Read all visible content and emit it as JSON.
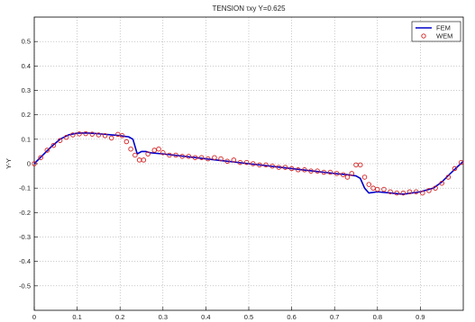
{
  "chart_data": {
    "type": "line",
    "title": "TENSION τxy Y=0.625",
    "ylabel": "Y-Y",
    "xlabel": "",
    "xlim": [
      0,
      1
    ],
    "ylim": [
      -0.6,
      0.6
    ],
    "grid": true,
    "legend_position": "top-right",
    "x_ticks": [
      "0",
      "0.1",
      "0.2",
      "0.3",
      "0.4",
      "0.5",
      "0.6",
      "0.7",
      "0.8",
      "0.9"
    ],
    "y_ticks": [
      "0.5",
      "0.4",
      "0.3",
      "0.2",
      "0.1",
      "0",
      "-0.1",
      "-0.2",
      "-0.3",
      "-0.4",
      "-0.5"
    ],
    "series": [
      {
        "name": "FEM",
        "style": "line",
        "color": "#0000cc",
        "x": [
          0,
          0.02,
          0.04,
          0.06,
          0.08,
          0.1,
          0.12,
          0.14,
          0.16,
          0.18,
          0.2,
          0.21,
          0.22,
          0.23,
          0.24,
          0.25,
          0.26,
          0.27,
          0.3,
          0.35,
          0.4,
          0.45,
          0.5,
          0.55,
          0.6,
          0.65,
          0.7,
          0.73,
          0.75,
          0.76,
          0.77,
          0.78,
          0.8,
          0.83,
          0.86,
          0.9,
          0.93,
          0.95,
          0.97,
          1.0
        ],
        "y": [
          0.0,
          0.035,
          0.07,
          0.1,
          0.118,
          0.125,
          0.126,
          0.124,
          0.121,
          0.118,
          0.115,
          0.112,
          0.11,
          0.1,
          0.04,
          0.05,
          0.05,
          0.045,
          0.04,
          0.03,
          0.02,
          0.01,
          0.0,
          -0.01,
          -0.02,
          -0.03,
          -0.04,
          -0.045,
          -0.05,
          -0.06,
          -0.1,
          -0.12,
          -0.115,
          -0.12,
          -0.125,
          -0.115,
          -0.1,
          -0.075,
          -0.04,
          0.01
        ]
      },
      {
        "name": "WEM",
        "style": "markers",
        "color": "#d42020",
        "x": [
          0.0,
          0.015,
          0.03,
          0.045,
          0.06,
          0.075,
          0.09,
          0.105,
          0.12,
          0.135,
          0.15,
          0.165,
          0.18,
          0.195,
          0.205,
          0.215,
          0.225,
          0.235,
          0.245,
          0.255,
          0.265,
          0.28,
          0.29,
          0.3,
          0.315,
          0.33,
          0.345,
          0.36,
          0.375,
          0.39,
          0.405,
          0.42,
          0.435,
          0.45,
          0.465,
          0.48,
          0.495,
          0.51,
          0.525,
          0.54,
          0.555,
          0.57,
          0.585,
          0.6,
          0.615,
          0.63,
          0.645,
          0.66,
          0.675,
          0.69,
          0.705,
          0.72,
          0.73,
          0.74,
          0.75,
          0.76,
          0.77,
          0.78,
          0.79,
          0.8,
          0.815,
          0.83,
          0.845,
          0.86,
          0.875,
          0.89,
          0.905,
          0.92,
          0.935,
          0.95,
          0.965,
          0.98,
          0.995
        ],
        "y": [
          0.0,
          0.025,
          0.055,
          0.075,
          0.095,
          0.108,
          0.118,
          0.122,
          0.123,
          0.121,
          0.118,
          0.115,
          0.105,
          0.12,
          0.115,
          0.09,
          0.06,
          0.035,
          0.015,
          0.015,
          0.04,
          0.055,
          0.06,
          0.045,
          0.035,
          0.035,
          0.03,
          0.03,
          0.025,
          0.025,
          0.02,
          0.025,
          0.02,
          0.01,
          0.015,
          0.005,
          0.005,
          0.0,
          -0.005,
          -0.005,
          -0.01,
          -0.015,
          -0.015,
          -0.02,
          -0.025,
          -0.025,
          -0.03,
          -0.03,
          -0.035,
          -0.035,
          -0.04,
          -0.045,
          -0.055,
          -0.04,
          -0.005,
          -0.005,
          -0.055,
          -0.085,
          -0.1,
          -0.105,
          -0.105,
          -0.115,
          -0.12,
          -0.12,
          -0.115,
          -0.115,
          -0.12,
          -0.11,
          -0.1,
          -0.08,
          -0.055,
          -0.02,
          0.005
        ]
      }
    ]
  }
}
